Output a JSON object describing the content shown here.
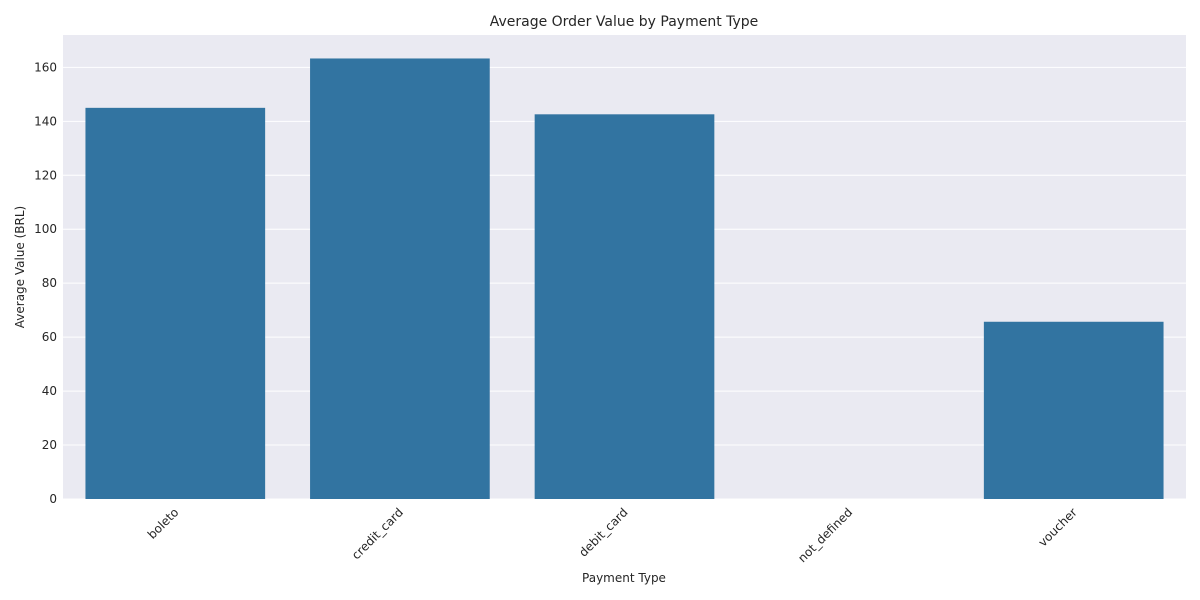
{
  "chart_data": {
    "type": "bar",
    "title": "Average Order Value by Payment Type",
    "xlabel": "Payment Type",
    "ylabel": "Average Value (BRL)",
    "categories": [
      "boleto",
      "credit_card",
      "debit_card",
      "not_defined",
      "voucher"
    ],
    "values": [
      145.0,
      163.3,
      142.6,
      0,
      65.7
    ],
    "ylim": [
      0,
      172
    ],
    "yticks": [
      0,
      20,
      40,
      60,
      80,
      100,
      120,
      140,
      160
    ],
    "grid": true,
    "legend": "none",
    "colors": {
      "bar": "#3274a1",
      "background": "#eaeaf2",
      "grid": "#ffffff"
    }
  }
}
